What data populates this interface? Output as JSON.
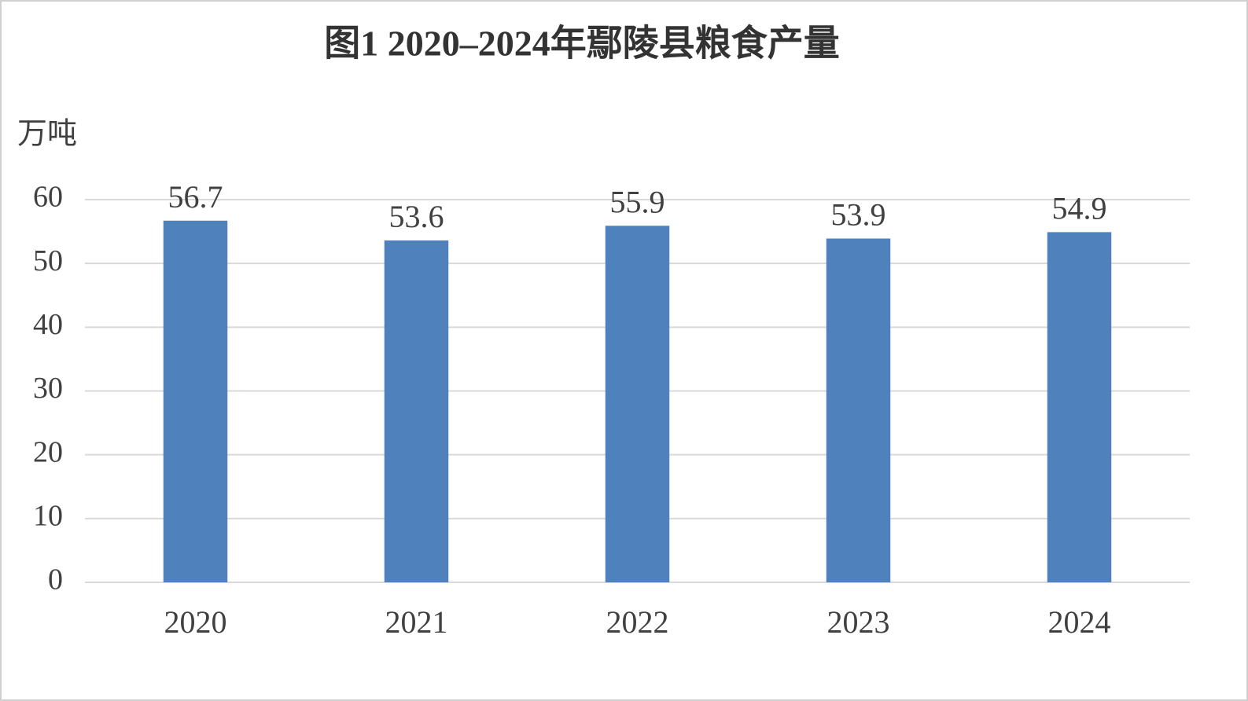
{
  "chart_data": {
    "type": "bar",
    "title": "图1   2020–2024年鄢陵县粮食产量",
    "y_label": "万吨",
    "categories": [
      "2020",
      "2021",
      "2022",
      "2023",
      "2024"
    ],
    "values": [
      56.7,
      53.6,
      55.9,
      53.9,
      54.9
    ],
    "color": "#4f81bd",
    "ylim": [
      0,
      60
    ],
    "yticks": [
      0,
      10,
      20,
      30,
      40,
      50,
      60
    ],
    "grid": true
  }
}
